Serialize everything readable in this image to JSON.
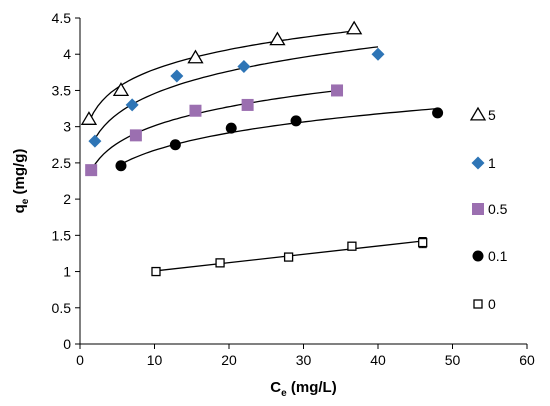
{
  "chart_data": {
    "type": "scatter",
    "xlabel_main": "C",
    "xlabel_sub": "e",
    "xlabel_unit": " (mg/L)",
    "ylabel_main": "q",
    "ylabel_sub": "e",
    "ylabel_unit": " (mg/g)",
    "xlim": [
      0,
      60
    ],
    "ylim": [
      0,
      4.5
    ],
    "xticks": [
      0,
      10,
      20,
      30,
      40,
      50,
      60
    ],
    "yticks": [
      0,
      0.5,
      1,
      1.5,
      2,
      2.5,
      3,
      3.5,
      4,
      4.5
    ],
    "grid": false,
    "legend": "right",
    "series": [
      {
        "name": "5",
        "marker": "triangle-open",
        "color": "#000000",
        "x": [
          1.2,
          5.5,
          15.5,
          26.5,
          36.8
        ],
        "y": [
          3.1,
          3.5,
          3.95,
          4.2,
          4.35
        ],
        "fit": "freundlich"
      },
      {
        "name": "1",
        "marker": "diamond",
        "color": "#2e75b6",
        "x": [
          2.0,
          7.0,
          13.0,
          22.0,
          40.0
        ],
        "y": [
          2.8,
          3.3,
          3.7,
          3.83,
          4.0
        ],
        "fit": "freundlich"
      },
      {
        "name": "0.5",
        "marker": "square",
        "color": "#9b6fb0",
        "x": [
          1.5,
          7.5,
          15.5,
          22.5,
          34.5
        ],
        "y": [
          2.4,
          2.88,
          3.22,
          3.3,
          3.5
        ],
        "fit": "freundlich"
      },
      {
        "name": "0.1",
        "marker": "circle",
        "color": "#000000",
        "x": [
          5.5,
          12.8,
          20.3,
          29.0,
          48.0
        ],
        "y": [
          2.46,
          2.75,
          2.98,
          3.08,
          3.19
        ],
        "fit": "freundlich"
      },
      {
        "name": "0",
        "marker": "square-open-errorbar",
        "color": "#000000",
        "x": [
          10.2,
          18.8,
          28.0,
          36.5,
          46.0
        ],
        "y": [
          1.0,
          1.12,
          1.2,
          1.35,
          1.4
        ],
        "yerr": [
          0.03,
          0.04,
          0.04,
          0.05,
          0.07
        ],
        "fit": "linear"
      }
    ]
  }
}
